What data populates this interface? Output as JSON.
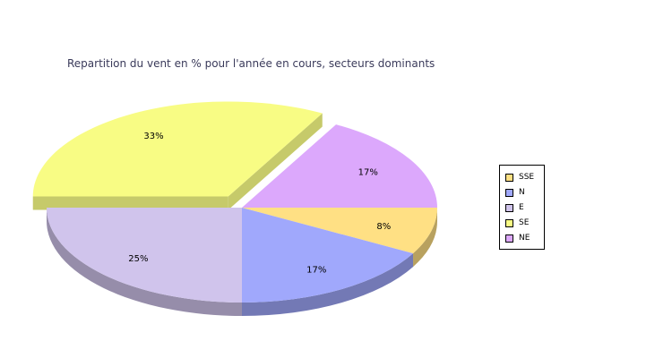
{
  "chart_data": {
    "type": "pie",
    "style": "3d-exploded",
    "title": "Repartition du vent en % pour l'année en cours, secteurs dominants",
    "categories": [
      "SSE",
      "N",
      "E",
      "SE",
      "NE"
    ],
    "values": [
      8,
      17,
      25,
      33,
      17
    ],
    "labels": [
      "8%",
      "17%",
      "25%",
      "33%",
      "17%"
    ],
    "colors": [
      "#ffe084",
      "#a0a8fc",
      "#d0c4ec",
      "#f8fc84",
      "#dca8fc"
    ],
    "exploded": [
      "SE"
    ],
    "legend_position": "right"
  }
}
